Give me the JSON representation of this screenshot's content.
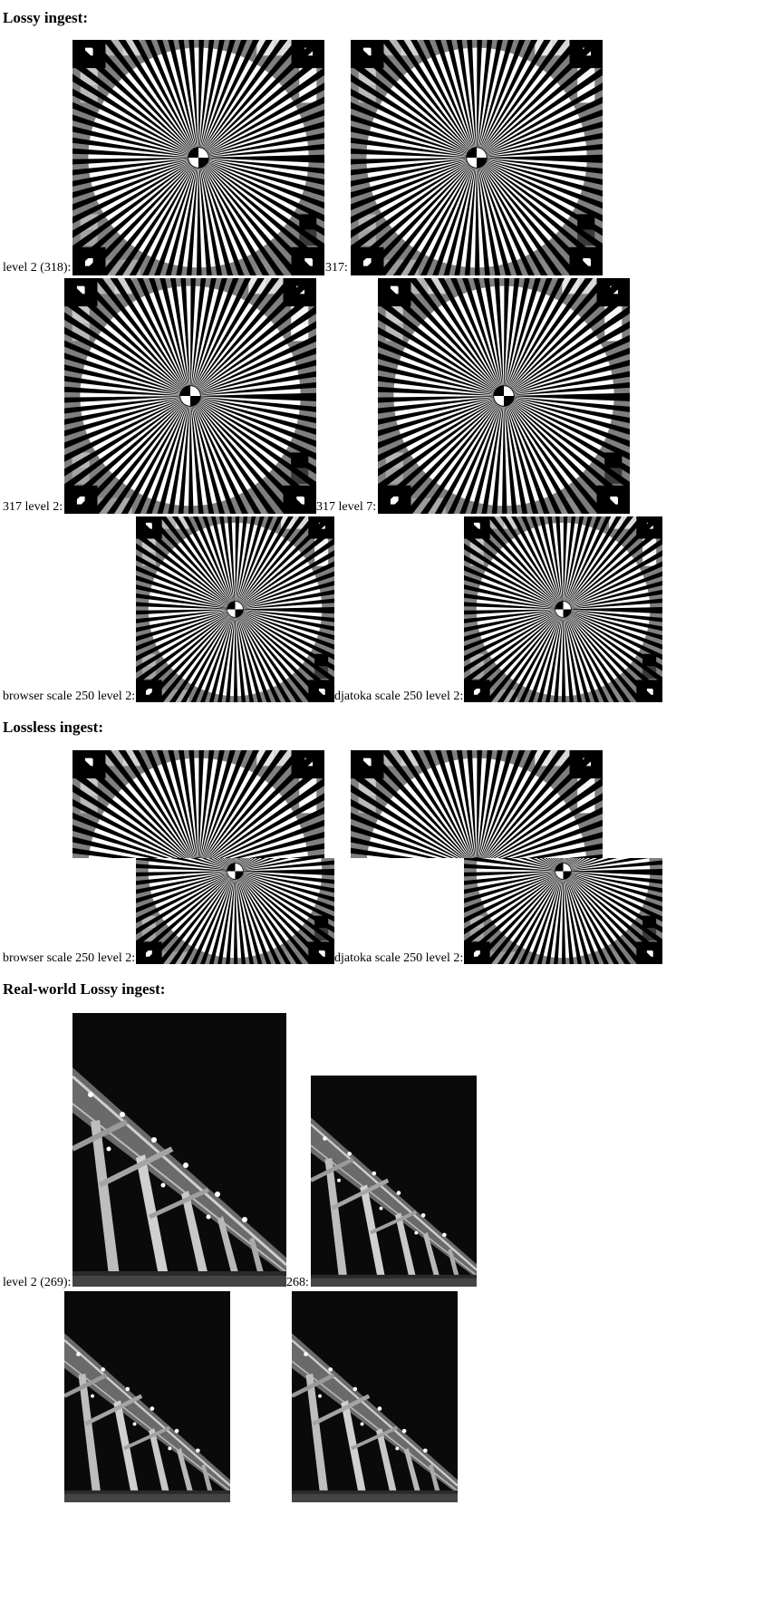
{
  "sections": {
    "lossy": "Lossy ingest:",
    "lossless": "Lossless ingest:",
    "realworld": "Real-world Lossy ingest:"
  },
  "captions": {
    "c1": "level 2 (318):",
    "c2": "317:",
    "c3": "317 level 2:",
    "c4": "317 level 7:",
    "c5": "browser scale 250 level 2:",
    "c6": "djatoka scale 250 level 2:",
    "c7": "browser scale 250 level 2:",
    "c8": "djatoka scale 250 level 2:",
    "c9": "level 2 (269):",
    "c10": "268:"
  }
}
